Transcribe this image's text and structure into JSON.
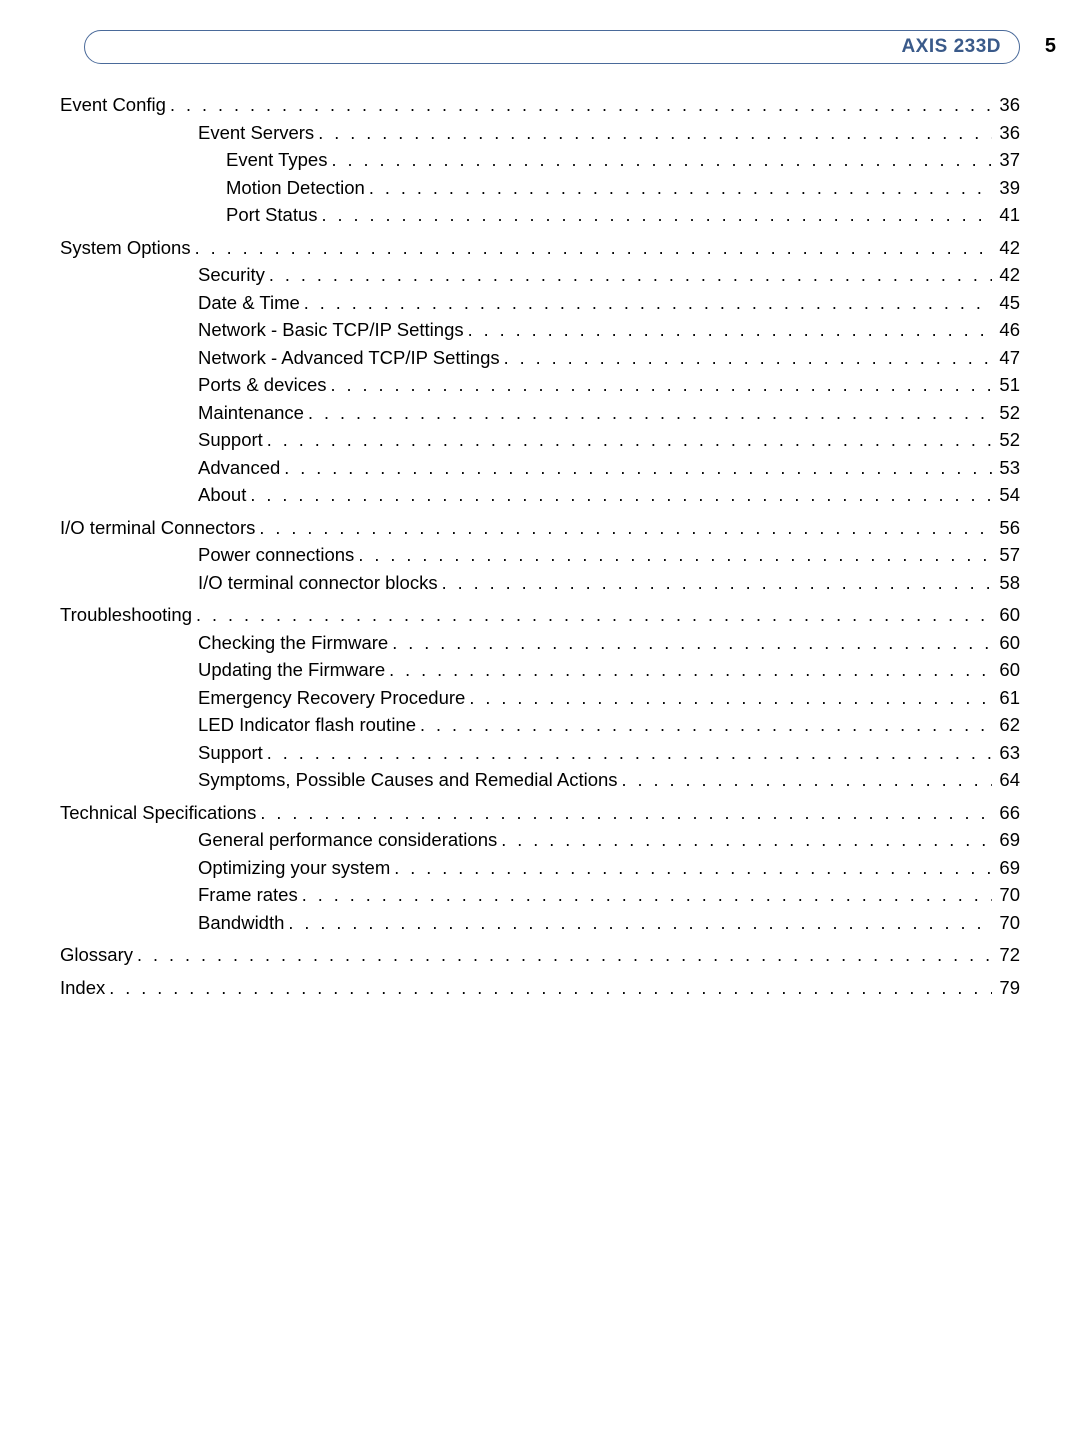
{
  "header": {
    "title": "AXIS 233D",
    "page_number": "5"
  },
  "dots": ". . . . . . . . . . . . . . . . . . . . . . . . . . . . . . . . . . . . . . . . . . . . . . . . . . . . . . . . . . . . . . . . . . . . . . . . . . . . . . . . . . . . . . . . . . . . . . . . . . . . . . . . . . . . . . . . . . . . . . . .",
  "toc": [
    {
      "level": 1,
      "label": "Event Config",
      "page": "36"
    },
    {
      "level": 2,
      "label": "Event Servers",
      "page": "36"
    },
    {
      "level": 3,
      "label": "Event Types",
      "page": "37"
    },
    {
      "level": 3,
      "label": "Motion Detection",
      "page": "39"
    },
    {
      "level": 3,
      "label": "Port Status",
      "page": "41"
    },
    {
      "level": 1,
      "label": "System Options",
      "page": "42"
    },
    {
      "level": 2,
      "label": "Security",
      "page": "42"
    },
    {
      "level": 2,
      "label": "Date & Time",
      "page": "45"
    },
    {
      "level": 2,
      "label": "Network - Basic TCP/IP Settings",
      "page": "46"
    },
    {
      "level": 2,
      "label": "Network - Advanced TCP/IP Settings",
      "page": "47"
    },
    {
      "level": 2,
      "label": "Ports & devices",
      "page": "51"
    },
    {
      "level": 2,
      "label": "Maintenance",
      "page": "52"
    },
    {
      "level": 2,
      "label": "Support",
      "page": "52"
    },
    {
      "level": 2,
      "label": "Advanced",
      "page": "53"
    },
    {
      "level": 2,
      "label": "About",
      "page": "54"
    },
    {
      "level": 1,
      "label": "I/O terminal Connectors",
      "page": "56"
    },
    {
      "level": 2,
      "label": "Power connections",
      "page": "57"
    },
    {
      "level": 2,
      "label": "I/O terminal connector blocks",
      "page": "58"
    },
    {
      "level": 1,
      "label": "Troubleshooting",
      "page": "60"
    },
    {
      "level": 2,
      "label": "Checking the Firmware",
      "page": "60"
    },
    {
      "level": 2,
      "label": "Updating the Firmware",
      "page": "60"
    },
    {
      "level": 2,
      "label": "Emergency Recovery Procedure",
      "page": "61"
    },
    {
      "level": 2,
      "label": "LED Indicator flash routine",
      "page": "62"
    },
    {
      "level": 2,
      "label": "Support",
      "page": "63"
    },
    {
      "level": 2,
      "label": "Symptoms, Possible Causes and Remedial Actions",
      "page": "64"
    },
    {
      "level": 1,
      "label": "Technical Specifications",
      "page": "66"
    },
    {
      "level": 2,
      "label": "General performance considerations",
      "page": "69"
    },
    {
      "level": 2,
      "label": "Optimizing your system",
      "page": "69"
    },
    {
      "level": 2,
      "label": "Frame rates",
      "page": "70"
    },
    {
      "level": 2,
      "label": "Bandwidth",
      "page": "70"
    },
    {
      "level": 1,
      "label": "Glossary",
      "page": "72"
    },
    {
      "level": 1,
      "label": "Index",
      "page": "79"
    }
  ]
}
